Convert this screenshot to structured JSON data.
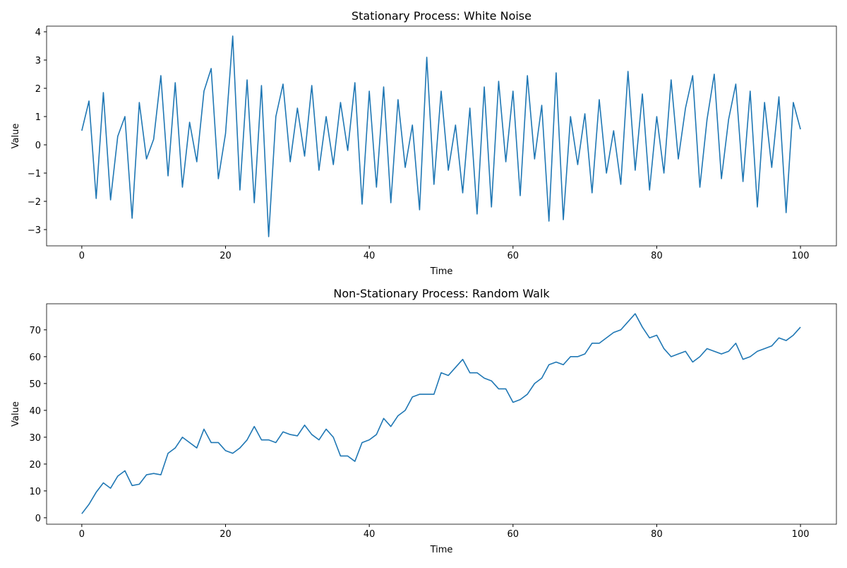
{
  "chart_data": [
    {
      "type": "line",
      "title": "Stationary Process: White Noise",
      "xlabel": "Time",
      "ylabel": "Value",
      "x": [
        0,
        1,
        2,
        3,
        4,
        5,
        6,
        7,
        8,
        9,
        10,
        11,
        12,
        13,
        14,
        15,
        16,
        17,
        18,
        19,
        20,
        21,
        22,
        23,
        24,
        25,
        26,
        27,
        28,
        29,
        30,
        31,
        32,
        33,
        34,
        35,
        36,
        37,
        38,
        39,
        40,
        41,
        42,
        43,
        44,
        45,
        46,
        47,
        48,
        49,
        50,
        51,
        52,
        53,
        54,
        55,
        56,
        57,
        58,
        59,
        60,
        61,
        62,
        63,
        64,
        65,
        66,
        67,
        68,
        69,
        70,
        71,
        72,
        73,
        74,
        75,
        76,
        77,
        78,
        79,
        80,
        81,
        82,
        83,
        84,
        85,
        86,
        87,
        88,
        89,
        90,
        91,
        92,
        93,
        94,
        95,
        96,
        97,
        98,
        99,
        100
      ],
      "series": [
        {
          "name": "White Noise",
          "color": "#1f77b4",
          "values": [
            0.5,
            1.55,
            -1.9,
            1.85,
            -1.95,
            0.3,
            1.0,
            -2.6,
            1.5,
            -0.5,
            0.2,
            2.45,
            -1.1,
            2.2,
            -1.5,
            0.8,
            -0.6,
            1.9,
            2.7,
            -1.2,
            0.4,
            3.85,
            -1.6,
            2.3,
            -2.05,
            2.1,
            -3.25,
            1.0,
            2.15,
            -0.6,
            1.3,
            -0.4,
            2.1,
            -0.9,
            1.0,
            -0.7,
            1.5,
            -0.2,
            2.2,
            -2.1,
            1.9,
            -1.5,
            2.05,
            -2.05,
            1.6,
            -0.8,
            0.7,
            -2.3,
            3.1,
            -1.4,
            1.9,
            -0.9,
            0.7,
            -1.7,
            1.3,
            -2.45,
            2.05,
            -2.2,
            2.25,
            -0.6,
            1.9,
            -1.8,
            2.45,
            -0.5,
            1.4,
            -2.7,
            2.55,
            -2.65,
            1.0,
            -0.7,
            1.1,
            -1.7,
            1.6,
            -1.0,
            0.5,
            -1.4,
            2.6,
            -0.9,
            1.8,
            -1.6,
            1.0,
            -1.0,
            2.3,
            -0.5,
            1.3,
            2.45,
            -1.5,
            0.9,
            2.5,
            -1.2,
            0.9,
            2.15,
            -1.3,
            1.9,
            -2.2,
            1.5,
            -0.8,
            1.7,
            -2.4,
            1.5,
            0.55
          ]
        }
      ],
      "xlim": [
        -4.9,
        105
      ],
      "ylim": [
        -3.575,
        4.2
      ],
      "xticks": [
        0,
        20,
        40,
        60,
        80,
        100
      ],
      "yticks": [
        {
          "value": -3,
          "label": "−3"
        },
        {
          "value": -2,
          "label": "−2"
        },
        {
          "value": -1,
          "label": "−1"
        },
        0,
        1,
        2,
        3,
        4
      ]
    },
    {
      "type": "line",
      "title": "Non-Stationary Process: Random Walk",
      "xlabel": "Time",
      "ylabel": "Value",
      "x": [
        0,
        1,
        2,
        3,
        4,
        5,
        6,
        7,
        8,
        9,
        10,
        11,
        12,
        13,
        14,
        15,
        16,
        17,
        18,
        19,
        20,
        21,
        22,
        23,
        24,
        25,
        26,
        27,
        28,
        29,
        30,
        31,
        32,
        33,
        34,
        35,
        36,
        37,
        38,
        39,
        40,
        41,
        42,
        43,
        44,
        45,
        46,
        47,
        48,
        49,
        50,
        51,
        52,
        53,
        54,
        55,
        56,
        57,
        58,
        59,
        60,
        61,
        62,
        63,
        64,
        65,
        66,
        67,
        68,
        69,
        70,
        71,
        72,
        73,
        74,
        75,
        76,
        77,
        78,
        79,
        80,
        81,
        82,
        83,
        84,
        85,
        86,
        87,
        88,
        89,
        90,
        91,
        92,
        93,
        94,
        95,
        96,
        97,
        98,
        99,
        100
      ],
      "series": [
        {
          "name": "Random Walk",
          "color": "#1f77b4",
          "values": [
            1.5,
            5,
            9.5,
            13,
            11,
            15.5,
            17.5,
            12,
            12.5,
            16,
            16.5,
            16,
            24,
            26,
            30,
            28,
            26,
            33,
            28,
            28,
            25,
            24,
            26,
            29,
            34,
            29,
            29,
            28,
            32,
            31,
            30.5,
            34.5,
            31,
            29,
            33,
            30,
            23,
            23,
            21,
            28,
            29,
            31,
            37,
            34,
            38,
            40,
            45,
            46,
            46,
            46,
            54,
            53,
            56,
            59,
            54,
            54,
            52,
            51,
            48,
            48,
            43,
            44,
            46,
            50,
            52,
            57,
            58,
            57,
            60,
            60,
            61,
            65,
            65,
            67,
            69,
            70,
            73,
            76,
            71,
            67,
            68,
            63,
            60,
            61,
            62,
            58,
            60,
            63,
            62,
            61,
            62,
            65,
            59,
            60,
            62,
            63,
            64,
            67,
            66,
            68,
            71
          ]
        }
      ],
      "xlim": [
        -4.9,
        105
      ],
      "ylim": [
        -2.4,
        79.7
      ],
      "xticks": [
        0,
        20,
        40,
        60,
        80,
        100
      ],
      "yticks": [
        0,
        10,
        20,
        30,
        40,
        50,
        60,
        70
      ]
    }
  ]
}
